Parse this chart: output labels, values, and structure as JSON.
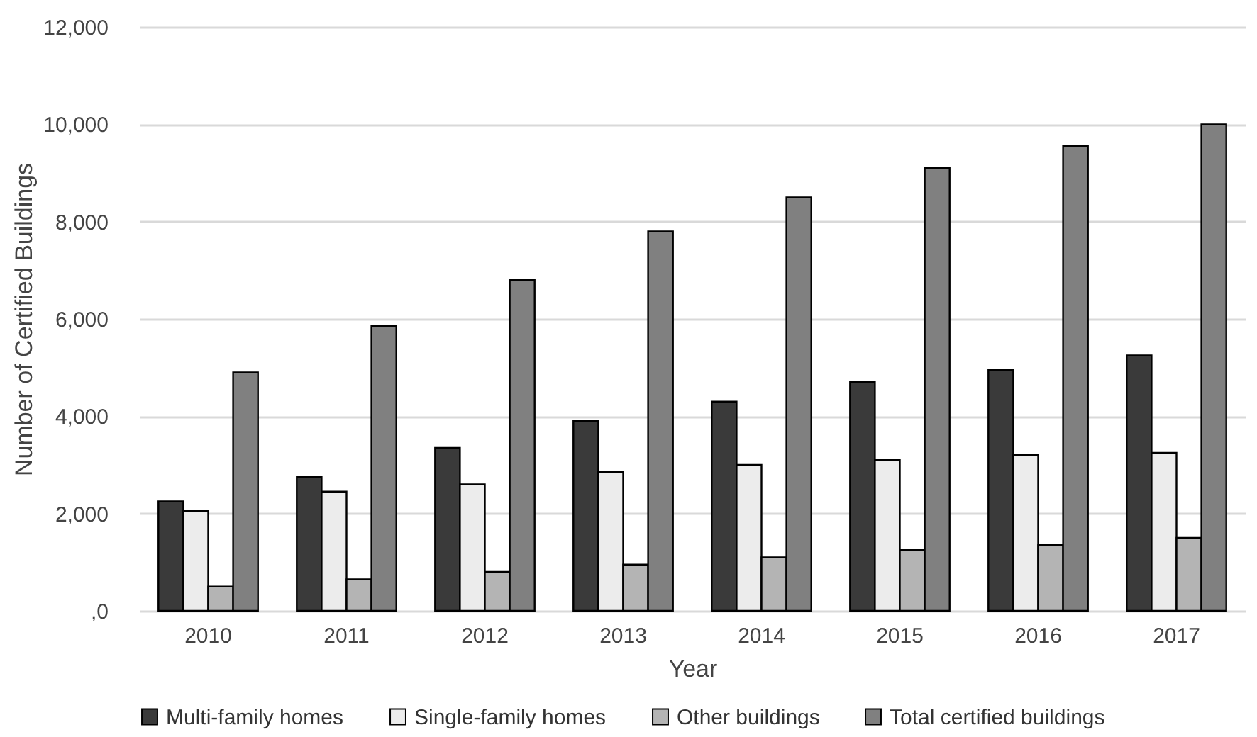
{
  "chart_data": {
    "type": "bar",
    "xlabel": "Year",
    "ylabel": "Number of Certified Buildings",
    "categories": [
      "2010",
      "2011",
      "2012",
      "2013",
      "2014",
      "2015",
      "2016",
      "2017"
    ],
    "series": [
      {
        "name": "Multi-family homes",
        "color": "#3a3a3a",
        "values": [
          2250,
          2750,
          3350,
          3900,
          4300,
          4700,
          4950,
          5250
        ]
      },
      {
        "name": "Single-family homes",
        "color": "#ececec",
        "values": [
          2050,
          2450,
          2600,
          2850,
          3000,
          3100,
          3200,
          3250
        ]
      },
      {
        "name": "Other buildings",
        "color": "#b4b4b4",
        "values": [
          500,
          650,
          800,
          950,
          1100,
          1250,
          1350,
          1500
        ]
      },
      {
        "name": "Total certified buildings",
        "color": "#808080",
        "values": [
          4900,
          5850,
          6800,
          7800,
          8500,
          9100,
          9550,
          10000
        ]
      }
    ],
    "ylim": [
      0,
      12000
    ],
    "yticks": [
      {
        "value": 0,
        "label": ",0"
      },
      {
        "value": 2000,
        "label": "2,000"
      },
      {
        "value": 4000,
        "label": "4,000"
      },
      {
        "value": 6000,
        "label": "6,000"
      },
      {
        "value": 8000,
        "label": "8,000"
      },
      {
        "value": 10000,
        "label": "10,000"
      },
      {
        "value": 12000,
        "label": "12,000"
      }
    ],
    "grid": "y",
    "legend": "bottom"
  }
}
